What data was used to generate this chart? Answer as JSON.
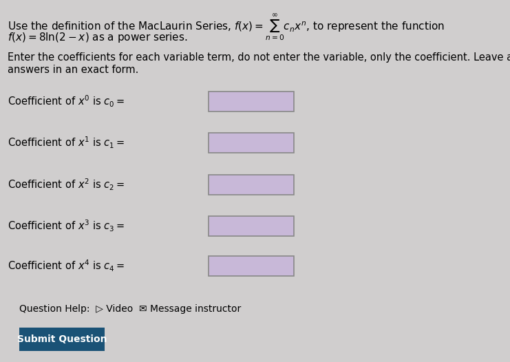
{
  "bg_color": "#d0cece",
  "title_line1": "Use the definition of the MacLaurin Series, $f(x) = \\sum_{n=0}^{\\infty} c_n x^n$, to represent the function",
  "title_line2": "$f(x) = 8\\ln(2 - x)$ as a power series.",
  "instruction": "Enter the coefficients for each variable term, do not enter the variable, only the coefficient. Leave all\nanswers in an exact form.",
  "coefficients": [
    {
      "label": "Coefficient of $x^0$ is $c_0 =$",
      "box": true
    },
    {
      "label": "Coefficient of $x^1$ is $c_1 =$",
      "box": true
    },
    {
      "label": "Coefficient of $x^2$ is $c_2 =$",
      "box": true
    },
    {
      "label": "Coefficient of $x^3$ is $c_3 =$",
      "box": true
    },
    {
      "label": "Coefficient of $x^4$ is $c_4 =$",
      "box": true
    }
  ],
  "help_text": "Question Help:  ▷ Video  ✉ Message instructor",
  "button_text": "Submit Question",
  "button_color": "#1a5276",
  "button_text_color": "#ffffff",
  "input_box_color": "#c8b8d8",
  "text_color": "#000000",
  "font_size_main": 11,
  "font_size_label": 10.5,
  "font_size_help": 10
}
